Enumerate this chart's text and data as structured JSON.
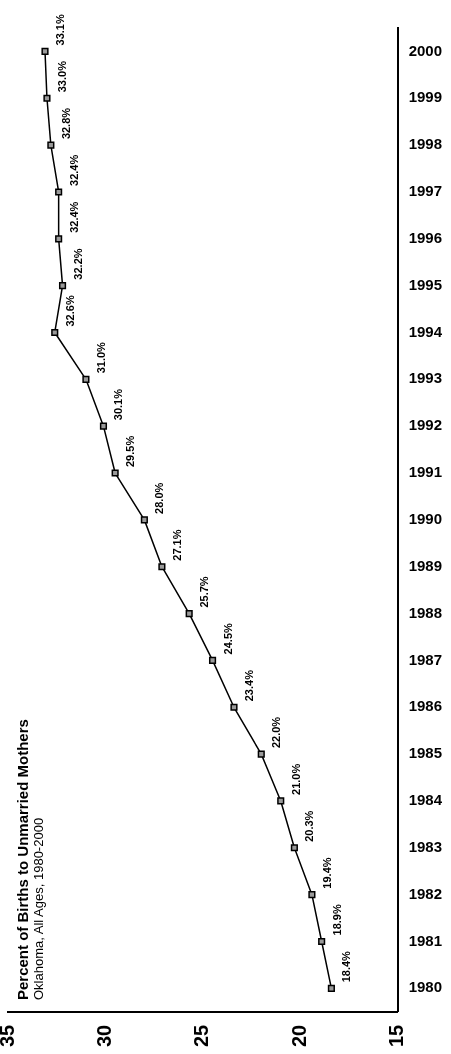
{
  "chart_data": {
    "type": "line",
    "title": "Percent of Births to Unmarried Mothers",
    "subtitle": "Oklahoma, All Ages, 1980-2000",
    "orientation": "horizontal",
    "categories": [
      "2000",
      "1999",
      "1998",
      "1997",
      "1996",
      "1995",
      "1994",
      "1993",
      "1992",
      "1991",
      "1990",
      "1989",
      "1988",
      "1987",
      "1986",
      "1985",
      "1984",
      "1983",
      "1982",
      "1981",
      "1980"
    ],
    "series": [
      {
        "color": "#000000",
        "values": [
          33.1,
          33.0,
          32.8,
          32.4,
          32.4,
          32.2,
          32.6,
          31.0,
          30.1,
          29.5,
          28.0,
          27.1,
          25.7,
          24.5,
          23.4,
          22.0,
          21.0,
          20.3,
          19.4,
          18.9,
          18.4
        ],
        "value_labels": [
          "33.1%",
          "33.0%",
          "32.8%",
          "32.4%",
          "32.4%",
          "32.2%",
          "32.6%",
          "31.0%",
          "30.1%",
          "29.5%",
          "28.0%",
          "27.1%",
          "25.7%",
          "24.5%",
          "23.4%",
          "22.0%",
          "21.0%",
          "20.3%",
          "19.4%",
          "18.9%",
          "18.4%"
        ]
      }
    ],
    "xlim": [
      35,
      15
    ],
    "xticks": [
      35,
      30,
      25,
      20,
      15
    ],
    "grid": false,
    "legend": false,
    "marker": "square",
    "line_style": "solid"
  }
}
